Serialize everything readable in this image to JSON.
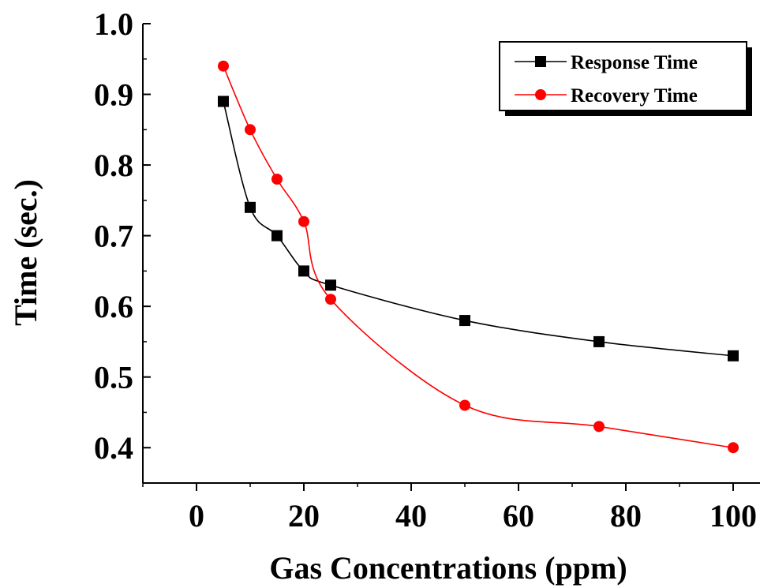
{
  "chart_data": {
    "type": "line",
    "xlabel": "Gas Concentrations (ppm)",
    "ylabel": "Time (sec.)",
    "xlim": [
      -10,
      105
    ],
    "ylim": [
      0.35,
      1.0
    ],
    "xticks": [
      "0",
      "20",
      "40",
      "60",
      "80",
      "100"
    ],
    "yticks": [
      "0.4",
      "0.5",
      "0.6",
      "0.7",
      "0.8",
      "0.9",
      "1.0"
    ],
    "legend_position": "top-right",
    "series": [
      {
        "name": "Response Time",
        "color": "#000000",
        "marker": "square",
        "x": [
          5,
          10,
          15,
          20,
          25,
          50,
          75,
          100
        ],
        "y": [
          0.89,
          0.74,
          0.7,
          0.65,
          0.63,
          0.58,
          0.55,
          0.53
        ]
      },
      {
        "name": "Recovery Time",
        "color": "#ff0000",
        "marker": "circle",
        "x": [
          5,
          10,
          15,
          20,
          25,
          50,
          75,
          100
        ],
        "y": [
          0.94,
          0.85,
          0.78,
          0.72,
          0.61,
          0.46,
          0.43,
          0.4
        ]
      }
    ]
  }
}
